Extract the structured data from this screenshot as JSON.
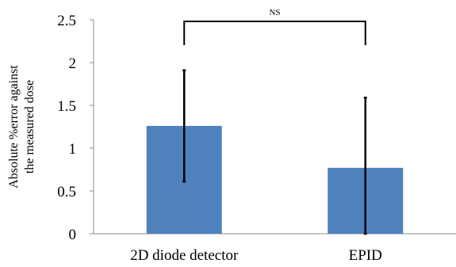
{
  "chart_data": {
    "type": "bar",
    "categories": [
      "2D diode detector",
      "EPID"
    ],
    "values": [
      1.26,
      0.77
    ],
    "error_bars": [
      {
        "low": 0.61,
        "high": 1.91
      },
      {
        "low": 0.0,
        "high": 1.59
      }
    ],
    "title": "",
    "xlabel": "",
    "ylabel_lines": [
      "Absolute %error against",
      "the measured dose"
    ],
    "ylim": [
      0,
      2.5
    ],
    "yticks": [
      "0",
      "0.5",
      "1",
      "1.5",
      "2",
      "2.5"
    ],
    "grid": false,
    "bar_color": "#4F81BD",
    "significance": {
      "between": [
        0,
        1
      ],
      "label": "NS"
    }
  }
}
